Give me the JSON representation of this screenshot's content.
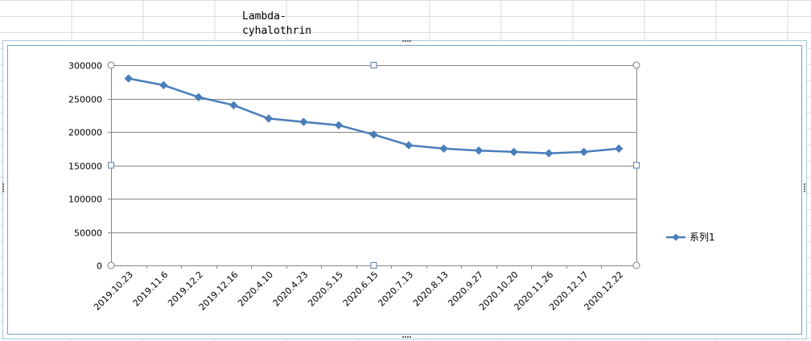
{
  "sheet": {
    "cell_text": "Lambda-cyhalothrin"
  },
  "colors": {
    "series": "#4a7ebb",
    "grid": "#868686",
    "frame": "#a6c9d9",
    "handle": "#5b7fa8"
  },
  "chart_data": {
    "type": "line",
    "title": "",
    "xlabel": "",
    "ylabel": "",
    "categories": [
      "2019.10.23",
      "2019.11.6",
      "2019.12.2",
      "2019.12.16",
      "2020.4.10",
      "2020.4.23",
      "2020.5.15",
      "2020.6.15",
      "2020.7.13",
      "2020.8.13",
      "2020.9.27",
      "2020.10.20",
      "2020.11.26",
      "2020.12.17",
      "2020.12.22"
    ],
    "series": [
      {
        "name": "系列1",
        "marker": "diamond",
        "values": [
          280000,
          270000,
          252000,
          240000,
          220000,
          215000,
          210000,
          196000,
          180000,
          175000,
          172000,
          170000,
          168000,
          170000,
          175000
        ]
      }
    ],
    "ylim": [
      0,
      300000
    ],
    "yticks": [
      0,
      50000,
      100000,
      150000,
      200000,
      250000,
      300000
    ],
    "grid": true,
    "legend_position": "right"
  }
}
